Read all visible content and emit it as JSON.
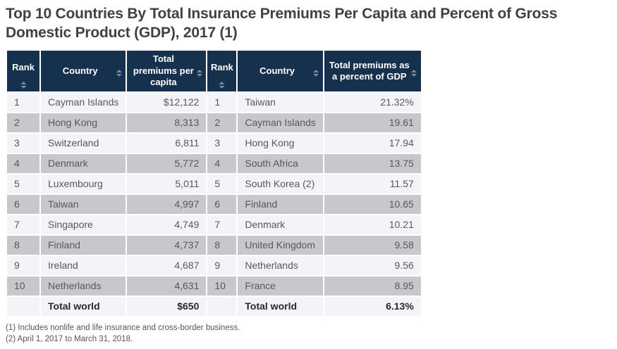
{
  "colors": {
    "header_bg": "#16314d",
    "header_text": "#ffffff",
    "row_light": "#f4f4f8",
    "row_gray": "#c7c8cc",
    "cell_text": "#57585c",
    "title_text": "#414044"
  },
  "chart_data": {
    "type": "table",
    "title": "Top 10 Countries By Total Insurance Premiums Per Capita and Percent of Gross Domestic Product (GDP), 2017 (1)",
    "tables": [
      {
        "name": "total-premiums-per-capita",
        "columns": [
          "Rank",
          "Country",
          "Total premiums per capita"
        ],
        "rows": [
          [
            "1",
            "Cayman Islands",
            "$12,122"
          ],
          [
            "2",
            "Hong Kong",
            "8,313"
          ],
          [
            "3",
            "Switzerland",
            "6,811"
          ],
          [
            "4",
            "Denmark",
            "5,772"
          ],
          [
            "5",
            "Luxembourg",
            "5,011"
          ],
          [
            "6",
            "Taiwan",
            "4,997"
          ],
          [
            "7",
            "Singapore",
            "4,749"
          ],
          [
            "8",
            "Finland",
            "4,737"
          ],
          [
            "9",
            "Ireland",
            "4,687"
          ],
          [
            "10",
            "Netherlands",
            "4,631"
          ]
        ],
        "total": [
          "",
          "Total world",
          "$650"
        ]
      },
      {
        "name": "total-premiums-percent-of-gdp",
        "columns": [
          "Rank",
          "Country",
          "Total premiums as a percent of GDP"
        ],
        "rows": [
          [
            "1",
            "Taiwan",
            "21.32%"
          ],
          [
            "2",
            "Cayman Islands",
            "19.61"
          ],
          [
            "3",
            "Hong Kong",
            "17.94"
          ],
          [
            "4",
            "South Africa",
            "13.75"
          ],
          [
            "5",
            "South Korea (2)",
            "11.57"
          ],
          [
            "6",
            "Finland",
            "10.65"
          ],
          [
            "7",
            "Denmark",
            "10.21"
          ],
          [
            "8",
            "United Kingdom",
            "9.58"
          ],
          [
            "9",
            "Netherlands",
            "9.56"
          ],
          [
            "10",
            "France",
            "8.95"
          ]
        ],
        "total": [
          "",
          "Total world",
          "6.13%"
        ]
      }
    ],
    "footnotes": [
      "(1) Includes nonlife and life insurance and cross-border business.",
      "(2) April 1, 2017 to March 31, 2018."
    ]
  }
}
